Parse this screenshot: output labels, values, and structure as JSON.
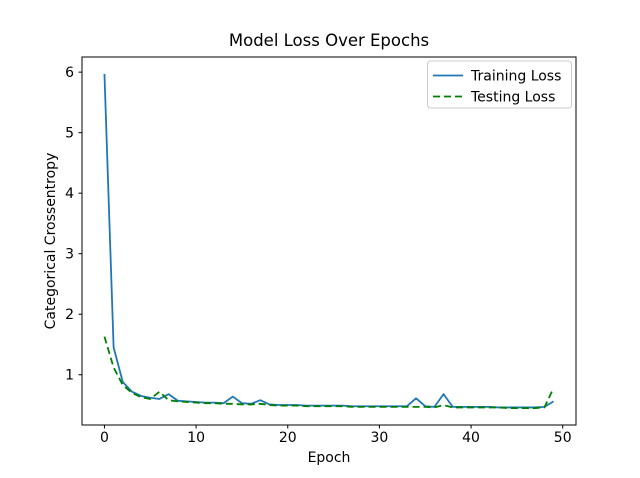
{
  "figure": {
    "background": "#ffffff",
    "spine_color": "#000000"
  },
  "chart_data": {
    "type": "line",
    "title": "Model Loss Over Epochs",
    "xlabel": "Epoch",
    "ylabel": "Categorical Crossentropy",
    "xlim": [
      -2.45,
      51.45
    ],
    "ylim": [
      0.17,
      6.25
    ],
    "x_ticks": [
      0,
      10,
      20,
      30,
      40,
      50
    ],
    "y_ticks": [
      1,
      2,
      3,
      4,
      5,
      6
    ],
    "grid": false,
    "legend_position": "upper right",
    "x": [
      0,
      1,
      2,
      3,
      4,
      5,
      6,
      7,
      8,
      9,
      10,
      11,
      12,
      13,
      14,
      15,
      16,
      17,
      18,
      19,
      20,
      21,
      22,
      23,
      24,
      25,
      26,
      27,
      28,
      29,
      30,
      31,
      32,
      33,
      34,
      35,
      36,
      37,
      38,
      39,
      40,
      41,
      42,
      43,
      44,
      45,
      46,
      47,
      48,
      49
    ],
    "series": [
      {
        "name": "Training Loss",
        "color": "#1f77b4",
        "style": "solid",
        "values": [
          5.97,
          1.45,
          0.88,
          0.72,
          0.65,
          0.62,
          0.6,
          0.68,
          0.57,
          0.56,
          0.55,
          0.54,
          0.54,
          0.53,
          0.64,
          0.53,
          0.52,
          0.58,
          0.51,
          0.5,
          0.5,
          0.5,
          0.49,
          0.49,
          0.49,
          0.49,
          0.49,
          0.48,
          0.48,
          0.48,
          0.48,
          0.48,
          0.48,
          0.48,
          0.61,
          0.48,
          0.47,
          0.68,
          0.47,
          0.47,
          0.47,
          0.47,
          0.47,
          0.46,
          0.46,
          0.46,
          0.46,
          0.46,
          0.47,
          0.56
        ]
      },
      {
        "name": "Testing Loss",
        "color": "#008000",
        "style": "dashed",
        "values": [
          1.63,
          1.12,
          0.83,
          0.7,
          0.63,
          0.6,
          0.72,
          0.58,
          0.56,
          0.55,
          0.54,
          0.53,
          0.53,
          0.52,
          0.52,
          0.51,
          0.51,
          0.52,
          0.5,
          0.49,
          0.49,
          0.49,
          0.48,
          0.48,
          0.48,
          0.48,
          0.48,
          0.47,
          0.47,
          0.47,
          0.47,
          0.47,
          0.47,
          0.47,
          0.47,
          0.47,
          0.46,
          0.5,
          0.46,
          0.46,
          0.46,
          0.46,
          0.46,
          0.46,
          0.45,
          0.45,
          0.45,
          0.45,
          0.46,
          0.78
        ]
      }
    ]
  },
  "legend": {
    "entries": [
      {
        "label": "Training Loss"
      },
      {
        "label": "Testing Loss"
      }
    ]
  }
}
